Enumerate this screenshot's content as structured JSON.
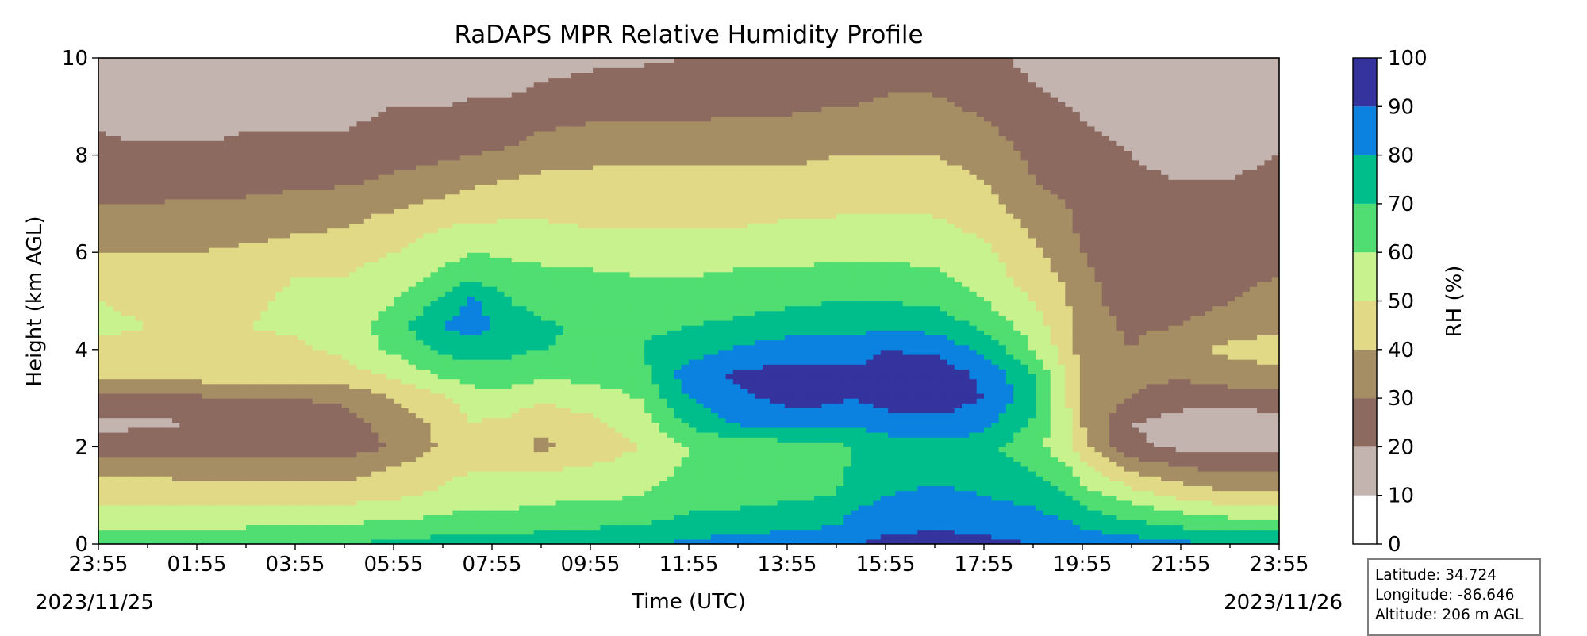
{
  "chart_data": {
    "type": "heatmap",
    "title": "RaDAPS MPR Relative Humidity Profile",
    "xlabel": "Time (UTC)",
    "ylabel": "Height (km AGL)",
    "x_ticks": [
      "23:55",
      "01:55",
      "03:55",
      "05:55",
      "07:55",
      "09:55",
      "11:55",
      "13:55",
      "15:55",
      "17:55",
      "19:55",
      "21:55",
      "23:55"
    ],
    "x_range_hours": [
      0,
      24
    ],
    "start_date": "2023/11/25",
    "end_date": "2023/11/26",
    "y_ticks": [
      0,
      2,
      4,
      6,
      8,
      10
    ],
    "ylim": [
      0,
      10
    ],
    "colorbar": {
      "label": "RH (%)",
      "levels": [
        0,
        10,
        20,
        30,
        40,
        50,
        60,
        70,
        80,
        90,
        100
      ],
      "colors": [
        "#ffffff",
        "#c4b4b0",
        "#8c6a60",
        "#a68e64",
        "#e1d985",
        "#c8f28e",
        "#50dd71",
        "#00bd8c",
        "#0b82e0",
        "#35339d"
      ]
    },
    "time_hours": [
      0,
      1,
      2,
      3,
      4,
      5,
      6,
      7,
      7.6,
      8.4,
      9,
      10,
      11,
      12,
      13,
      14,
      15,
      15.3,
      16,
      17,
      18,
      19,
      19.7,
      20,
      21,
      22,
      23,
      24
    ],
    "heights_km": [
      0,
      0.5,
      1,
      1.5,
      2,
      2.5,
      3,
      3.5,
      4,
      4.5,
      5,
      5.5,
      6,
      6.5,
      7,
      7.5,
      8,
      8.5,
      9,
      9.5,
      10
    ],
    "rh_percent": [
      [
        65,
        55,
        45,
        38,
        24,
        18,
        28,
        44,
        47,
        52,
        50,
        45,
        40,
        35,
        30,
        25,
        22,
        20,
        15,
        14,
        12
      ],
      [
        65,
        56,
        46,
        38,
        25,
        18,
        28,
        45,
        48,
        50,
        48,
        45,
        40,
        35,
        30,
        25,
        22,
        18,
        15,
        14,
        12
      ],
      [
        66,
        57,
        46,
        37,
        25,
        20,
        28,
        45,
        47,
        50,
        48,
        45,
        40,
        36,
        32,
        25,
        22,
        18,
        15,
        14,
        13
      ],
      [
        67,
        57,
        45,
        37,
        25,
        21,
        30,
        45,
        47,
        50,
        48,
        46,
        42,
        36,
        32,
        25,
        22,
        20,
        16,
        14,
        13
      ],
      [
        68,
        58,
        45,
        37,
        25,
        22,
        30,
        46,
        48,
        52,
        52,
        50,
        45,
        38,
        33,
        28,
        22,
        20,
        17,
        15,
        14
      ],
      [
        70,
        58,
        46,
        36,
        25,
        25,
        32,
        46,
        52,
        55,
        52,
        50,
        46,
        40,
        35,
        28,
        23,
        20,
        18,
        16,
        14
      ],
      [
        72,
        60,
        48,
        42,
        30,
        35,
        40,
        52,
        62,
        65,
        60,
        55,
        50,
        45,
        38,
        32,
        25,
        22,
        20,
        16,
        14
      ],
      [
        74,
        62,
        52,
        48,
        42,
        42,
        48,
        62,
        72,
        80,
        72,
        62,
        56,
        50,
        42,
        35,
        28,
        24,
        20,
        17,
        15
      ],
      [
        75,
        65,
        55,
        50,
        45,
        50,
        55,
        65,
        75,
        85,
        82,
        68,
        60,
        52,
        44,
        38,
        30,
        25,
        21,
        18,
        16
      ],
      [
        74,
        64,
        55,
        50,
        44,
        48,
        55,
        65,
        72,
        76,
        70,
        64,
        58,
        52,
        46,
        40,
        32,
        26,
        22,
        18,
        16
      ],
      [
        75,
        66,
        57,
        50,
        38,
        42,
        52,
        62,
        70,
        72,
        65,
        62,
        58,
        52,
        46,
        42,
        36,
        30,
        24,
        20,
        17
      ],
      [
        76,
        67,
        58,
        52,
        44,
        48,
        55,
        63,
        68,
        68,
        66,
        62,
        56,
        50,
        46,
        42,
        38,
        32,
        26,
        22,
        18
      ],
      [
        78,
        68,
        60,
        55,
        50,
        55,
        60,
        66,
        70,
        68,
        65,
        60,
        55,
        50,
        45,
        42,
        38,
        32,
        26,
        22,
        19
      ],
      [
        82,
        72,
        65,
        62,
        60,
        72,
        80,
        85,
        75,
        70,
        65,
        60,
        55,
        50,
        45,
        42,
        38,
        32,
        27,
        23,
        20
      ],
      [
        84,
        74,
        66,
        64,
        62,
        82,
        88,
        92,
        82,
        72,
        66,
        62,
        56,
        50,
        46,
        42,
        38,
        33,
        28,
        24,
        20
      ],
      [
        85,
        76,
        68,
        65,
        64,
        86,
        92,
        94,
        85,
        75,
        68,
        62,
        56,
        52,
        46,
        42,
        38,
        34,
        28,
        24,
        20
      ],
      [
        86,
        78,
        70,
        66,
        65,
        85,
        92,
        93,
        85,
        76,
        70,
        64,
        58,
        52,
        48,
        44,
        40,
        35,
        30,
        26,
        22
      ],
      [
        90,
        82,
        76,
        72,
        70,
        82,
        90,
        92,
        85,
        76,
        70,
        64,
        58,
        52,
        48,
        44,
        40,
        36,
        30,
        26,
        22
      ],
      [
        92,
        86,
        80,
        76,
        74,
        86,
        94,
        95,
        90,
        78,
        70,
        64,
        58,
        52,
        48,
        44,
        40,
        36,
        32,
        28,
        24
      ],
      [
        93,
        88,
        82,
        78,
        76,
        88,
        95,
        96,
        88,
        76,
        68,
        62,
        56,
        52,
        48,
        44,
        40,
        36,
        32,
        28,
        24
      ],
      [
        92,
        86,
        80,
        76,
        74,
        84,
        90,
        88,
        78,
        68,
        60,
        56,
        52,
        48,
        44,
        40,
        36,
        32,
        28,
        24,
        22
      ],
      [
        90,
        84,
        76,
        70,
        62,
        68,
        74,
        70,
        60,
        55,
        50,
        45,
        42,
        38,
        34,
        30,
        28,
        25,
        22,
        20,
        18
      ],
      [
        88,
        80,
        70,
        62,
        55,
        52,
        50,
        48,
        45,
        42,
        40,
        38,
        35,
        32,
        30,
        27,
        25,
        22,
        20,
        18,
        16
      ],
      [
        88,
        76,
        65,
        55,
        44,
        40,
        38,
        38,
        36,
        35,
        33,
        32,
        30,
        28,
        27,
        25,
        23,
        21,
        19,
        17,
        15
      ],
      [
        85,
        70,
        55,
        40,
        22,
        20,
        30,
        32,
        30,
        28,
        26,
        25,
        24,
        23,
        22,
        21,
        20,
        18,
        17,
        16,
        14
      ],
      [
        82,
        65,
        48,
        32,
        18,
        16,
        24,
        32,
        38,
        30,
        25,
        22,
        20,
        20,
        20,
        20,
        18,
        16,
        15,
        14,
        14
      ],
      [
        80,
        62,
        42,
        30,
        17,
        15,
        24,
        36,
        42,
        36,
        30,
        28,
        26,
        24,
        22,
        20,
        18,
        16,
        15,
        14,
        14
      ],
      [
        80,
        60,
        42,
        30,
        18,
        15,
        26,
        38,
        44,
        38,
        34,
        30,
        28,
        26,
        24,
        22,
        20,
        17,
        15,
        14,
        14
      ]
    ]
  },
  "station": {
    "latitude": "Latitude: 34.724",
    "longitude": "Longitude: -86.646",
    "altitude": "Altitude: 206 m AGL"
  }
}
